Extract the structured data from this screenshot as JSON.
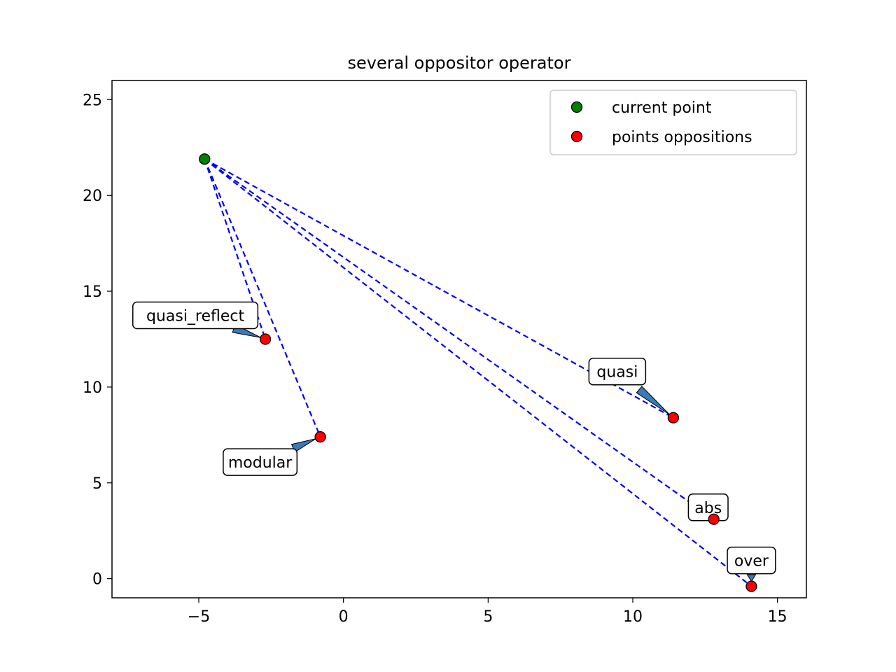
{
  "chart_data": {
    "type": "scatter",
    "title": "several oppositor operator",
    "xlabel": "",
    "ylabel": "",
    "xlim": [
      -8,
      16
    ],
    "ylim": [
      -1,
      26
    ],
    "xticks": [
      -5,
      0,
      5,
      10,
      15
    ],
    "yticks": [
      0,
      5,
      10,
      15,
      20,
      25
    ],
    "xtick_labels": [
      "−5",
      "0",
      "5",
      "10",
      "15"
    ],
    "ytick_labels": [
      "0",
      "5",
      "10",
      "15",
      "20",
      "25"
    ],
    "grid": false,
    "legend_position": "top-right",
    "colors": {
      "current": "#008000",
      "opposition": "#ff0000",
      "line": "#0000ff",
      "arrow": "#3a7ab8"
    },
    "current_point": {
      "name": "current point",
      "x": -4.8,
      "y": 21.9
    },
    "series": [
      {
        "name": "points oppositions",
        "points": [
          {
            "label": "quasi_reflect",
            "x": -2.7,
            "y": 12.5
          },
          {
            "label": "modular",
            "x": -0.8,
            "y": 7.4
          },
          {
            "label": "quasi",
            "x": 11.4,
            "y": 8.4
          },
          {
            "label": "abs",
            "x": 12.8,
            "y": 3.1
          },
          {
            "label": "over",
            "x": 14.1,
            "y": -0.4
          }
        ]
      }
    ],
    "legend": [
      {
        "label": "current point",
        "color": "#008000"
      },
      {
        "label": "points oppositions",
        "color": "#ff0000"
      }
    ]
  }
}
